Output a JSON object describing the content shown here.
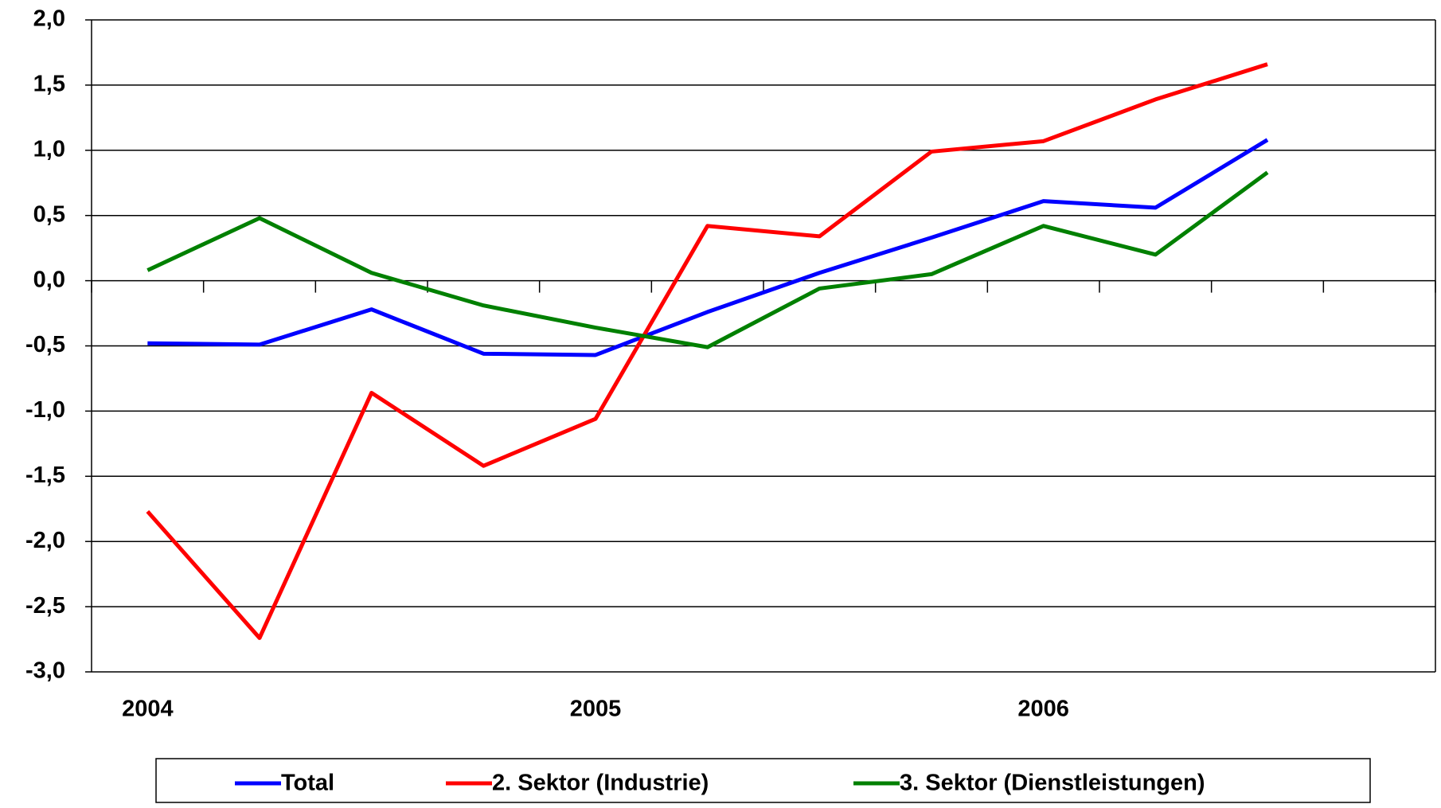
{
  "chart_data": {
    "type": "line",
    "categories": [
      "2004",
      null,
      null,
      null,
      "2005",
      null,
      null,
      null,
      "2006",
      null,
      null,
      null
    ],
    "series": [
      {
        "name": "Total",
        "color": "#0000ff",
        "values": [
          -0.48,
          -0.49,
          -0.22,
          -0.56,
          -0.57,
          -0.24,
          0.06,
          0.33,
          0.61,
          0.56,
          1.08,
          null
        ]
      },
      {
        "name": "2. Sektor (Industrie)",
        "color": "#ff0000",
        "values": [
          -1.77,
          -2.74,
          -0.86,
          -1.42,
          -1.06,
          0.42,
          0.34,
          0.99,
          1.07,
          1.39,
          1.66,
          null
        ]
      },
      {
        "name": "3. Sektor (Dienstleistungen)",
        "color": "#008000",
        "values": [
          0.08,
          0.48,
          0.06,
          -0.19,
          -0.36,
          -0.51,
          -0.06,
          0.05,
          0.42,
          0.2,
          0.83,
          null
        ]
      }
    ],
    "ylim": [
      -3,
      2
    ],
    "yticks": [
      {
        "value": -3,
        "label": "-3,0"
      },
      {
        "value": -2.5,
        "label": "-2,5"
      },
      {
        "value": -2,
        "label": "-2,0"
      },
      {
        "value": -1.5,
        "label": "-1,5"
      },
      {
        "value": -1,
        "label": "-1,0"
      },
      {
        "value": -0.5,
        "label": "-0,5"
      },
      {
        "value": 0,
        "label": "0,0"
      },
      {
        "value": 0.5,
        "label": "0,5"
      },
      {
        "value": 1,
        "label": "1,0"
      },
      {
        "value": 1.5,
        "label": "1,5"
      },
      {
        "value": 2,
        "label": "2,0"
      }
    ],
    "grid": true
  }
}
